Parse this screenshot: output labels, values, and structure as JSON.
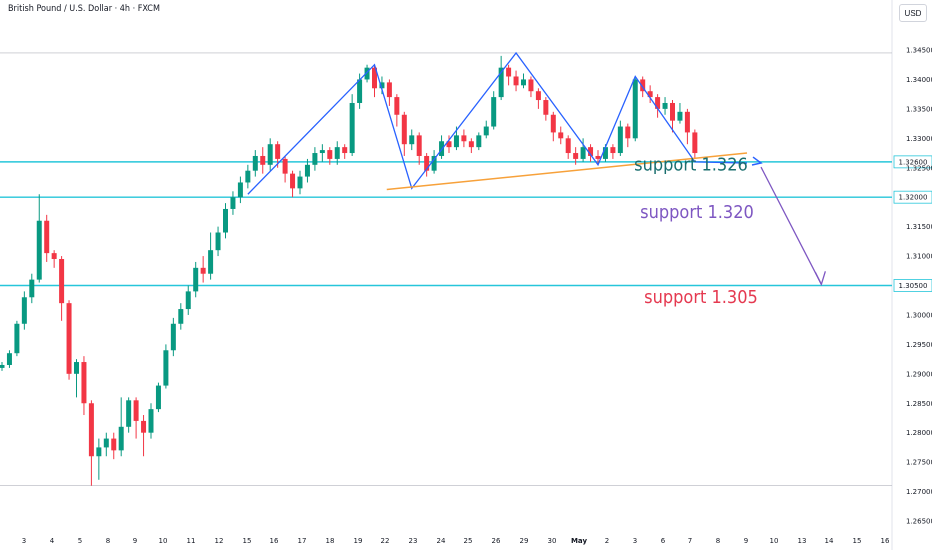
{
  "header": {
    "title": "British Pound / U.S. Dollar · 4h · FXCM",
    "currency": "USD"
  },
  "chart_data": {
    "type": "candlestick",
    "y_axis": {
      "min": 1.2625,
      "max": 1.3475,
      "ticks": [
        "1.34500",
        "1.34000",
        "1.33500",
        "1.33000",
        "1.32500",
        "1.32000",
        "1.31500",
        "1.31000",
        "1.30500",
        "1.30000",
        "1.29500",
        "1.29000",
        "1.28500",
        "1.28000",
        "1.27500",
        "1.27000",
        "1.26500"
      ]
    },
    "x_axis": {
      "ticks": [
        "3",
        "4",
        "5",
        "8",
        "9",
        "10",
        "11",
        "12",
        "15",
        "16",
        "17",
        "18",
        "19",
        "22",
        "23",
        "24",
        "25",
        "26",
        "29",
        "30",
        "May",
        "2",
        "3",
        "6",
        "7",
        "8",
        "9",
        "10",
        "13",
        "14",
        "15",
        "16"
      ]
    },
    "price_lines": [
      {
        "label": "1.32600",
        "value": 1.326,
        "color": "#26c6da"
      },
      {
        "label": "1.32000",
        "value": 1.32,
        "color": "#26c6da"
      },
      {
        "label": "1.30500",
        "value": 1.305,
        "color": "#26c6da"
      }
    ],
    "annotations": [
      {
        "text": "support 1.326",
        "color": "#1a6e6e",
        "value": 1.3245
      },
      {
        "text": "support 1.320",
        "color": "#7e57c2",
        "value": 1.3165
      },
      {
        "text": "support 1.305",
        "color": "#e53950",
        "value": 1.302
      }
    ],
    "candles": [
      [
        1.291,
        1.2915,
        1.2905,
        1.292
      ],
      [
        1.2915,
        1.2935,
        1.291,
        1.294
      ],
      [
        1.2935,
        1.2985,
        1.293,
        1.299
      ],
      [
        1.2985,
        1.303,
        1.2975,
        1.304
      ],
      [
        1.303,
        1.306,
        1.302,
        1.307
      ],
      [
        1.306,
        1.316,
        1.3055,
        1.3205
      ],
      [
        1.316,
        1.3105,
        1.309,
        1.317
      ],
      [
        1.3105,
        1.3095,
        1.308,
        1.311
      ],
      [
        1.3095,
        1.302,
        1.299,
        1.31
      ],
      [
        1.302,
        1.29,
        1.289,
        1.3025
      ],
      [
        1.29,
        1.292,
        1.286,
        1.2925
      ],
      [
        1.292,
        1.285,
        1.283,
        1.293
      ],
      [
        1.285,
        1.276,
        1.271,
        1.2855
      ],
      [
        1.276,
        1.2775,
        1.272,
        1.279
      ],
      [
        1.2775,
        1.279,
        1.276,
        1.28
      ],
      [
        1.279,
        1.277,
        1.2755,
        1.28
      ],
      [
        1.277,
        1.281,
        1.276,
        1.286
      ],
      [
        1.281,
        1.2855,
        1.28,
        1.286
      ],
      [
        1.2855,
        1.282,
        1.279,
        1.286
      ],
      [
        1.282,
        1.28,
        1.276,
        1.283
      ],
      [
        1.28,
        1.284,
        1.279,
        1.285
      ],
      [
        1.284,
        1.288,
        1.2835,
        1.2885
      ],
      [
        1.288,
        1.294,
        1.2875,
        1.295
      ],
      [
        1.294,
        1.2985,
        1.293,
        1.2995
      ],
      [
        1.2985,
        1.301,
        1.2975,
        1.302
      ],
      [
        1.301,
        1.304,
        1.3,
        1.305
      ],
      [
        1.304,
        1.308,
        1.303,
        1.309
      ],
      [
        1.308,
        1.307,
        1.3055,
        1.31
      ],
      [
        1.307,
        1.311,
        1.306,
        1.314
      ],
      [
        1.311,
        1.314,
        1.31,
        1.315
      ],
      [
        1.314,
        1.318,
        1.313,
        1.319
      ],
      [
        1.318,
        1.32,
        1.317,
        1.321
      ],
      [
        1.32,
        1.3225,
        1.319,
        1.3235
      ],
      [
        1.3225,
        1.3245,
        1.3215,
        1.3255
      ],
      [
        1.3245,
        1.327,
        1.3235,
        1.328
      ],
      [
        1.327,
        1.3255,
        1.324,
        1.3285
      ],
      [
        1.3255,
        1.329,
        1.3245,
        1.33
      ],
      [
        1.329,
        1.3265,
        1.325,
        1.3295
      ],
      [
        1.3265,
        1.324,
        1.3225,
        1.327
      ],
      [
        1.324,
        1.3215,
        1.32,
        1.3245
      ],
      [
        1.3215,
        1.3235,
        1.3205,
        1.3245
      ],
      [
        1.3235,
        1.3255,
        1.3225,
        1.3265
      ],
      [
        1.3255,
        1.3275,
        1.3245,
        1.3285
      ],
      [
        1.3275,
        1.328,
        1.326,
        1.329
      ],
      [
        1.328,
        1.3265,
        1.3255,
        1.3285
      ],
      [
        1.3265,
        1.3285,
        1.3255,
        1.3295
      ],
      [
        1.3285,
        1.3275,
        1.3265,
        1.329
      ],
      [
        1.3275,
        1.336,
        1.327,
        1.3375
      ],
      [
        1.336,
        1.34,
        1.335,
        1.341
      ],
      [
        1.34,
        1.342,
        1.3395,
        1.3425
      ],
      [
        1.342,
        1.3385,
        1.337,
        1.3425
      ],
      [
        1.3385,
        1.3395,
        1.3375,
        1.3405
      ],
      [
        1.3395,
        1.337,
        1.3355,
        1.34
      ],
      [
        1.337,
        1.334,
        1.332,
        1.3375
      ],
      [
        1.334,
        1.329,
        1.327,
        1.3345
      ],
      [
        1.329,
        1.3305,
        1.328,
        1.3315
      ],
      [
        1.3305,
        1.327,
        1.3255,
        1.331
      ],
      [
        1.327,
        1.3245,
        1.3235,
        1.3275
      ],
      [
        1.3245,
        1.327,
        1.324,
        1.328
      ],
      [
        1.327,
        1.3295,
        1.3265,
        1.3305
      ],
      [
        1.3295,
        1.3285,
        1.3275,
        1.3305
      ],
      [
        1.3285,
        1.3305,
        1.328,
        1.332
      ],
      [
        1.3305,
        1.3295,
        1.3285,
        1.3315
      ],
      [
        1.3295,
        1.3285,
        1.3275,
        1.33
      ],
      [
        1.3285,
        1.3305,
        1.328,
        1.331
      ],
      [
        1.3305,
        1.332,
        1.33,
        1.333
      ],
      [
        1.332,
        1.337,
        1.3315,
        1.338
      ],
      [
        1.337,
        1.342,
        1.3365,
        1.344
      ],
      [
        1.342,
        1.3405,
        1.339,
        1.3425
      ],
      [
        1.3405,
        1.339,
        1.338,
        1.3415
      ],
      [
        1.339,
        1.34,
        1.3385,
        1.341
      ],
      [
        1.34,
        1.338,
        1.337,
        1.3405
      ],
      [
        1.338,
        1.3365,
        1.335,
        1.3385
      ],
      [
        1.3365,
        1.334,
        1.333,
        1.337
      ],
      [
        1.334,
        1.331,
        1.3295,
        1.3345
      ],
      [
        1.331,
        1.33,
        1.329,
        1.332
      ],
      [
        1.33,
        1.3275,
        1.3265,
        1.3305
      ],
      [
        1.3275,
        1.3265,
        1.3255,
        1.3285
      ],
      [
        1.3265,
        1.3285,
        1.326,
        1.33
      ],
      [
        1.3285,
        1.327,
        1.326,
        1.329
      ],
      [
        1.327,
        1.3265,
        1.3255,
        1.328
      ],
      [
        1.3265,
        1.3285,
        1.326,
        1.329
      ],
      [
        1.3285,
        1.3275,
        1.3265,
        1.329
      ],
      [
        1.3275,
        1.332,
        1.327,
        1.333
      ],
      [
        1.332,
        1.33,
        1.3285,
        1.3325
      ],
      [
        1.33,
        1.34,
        1.3295,
        1.3405
      ],
      [
        1.34,
        1.338,
        1.337,
        1.3405
      ],
      [
        1.338,
        1.337,
        1.336,
        1.339
      ],
      [
        1.337,
        1.335,
        1.3335,
        1.3375
      ],
      [
        1.335,
        1.336,
        1.334,
        1.337
      ],
      [
        1.336,
        1.333,
        1.331,
        1.3365
      ],
      [
        1.333,
        1.3345,
        1.3325,
        1.336
      ],
      [
        1.3345,
        1.331,
        1.329,
        1.335
      ],
      [
        1.331,
        1.3275,
        1.3265,
        1.3315
      ]
    ],
    "pattern_line": [
      [
        33,
        1.3205
      ],
      [
        50,
        1.3425
      ],
      [
        55,
        1.3215
      ],
      [
        69,
        1.3445
      ],
      [
        80,
        1.3255
      ],
      [
        85,
        1.3405
      ],
      [
        93,
        1.326
      ],
      [
        100,
        1.3258
      ]
    ],
    "trendline": [
      [
        55,
        1.3213
      ],
      [
        100,
        1.3275
      ]
    ],
    "projection_arrow": [
      [
        100,
        1.3258
      ],
      [
        103,
        1.3052
      ]
    ]
  }
}
